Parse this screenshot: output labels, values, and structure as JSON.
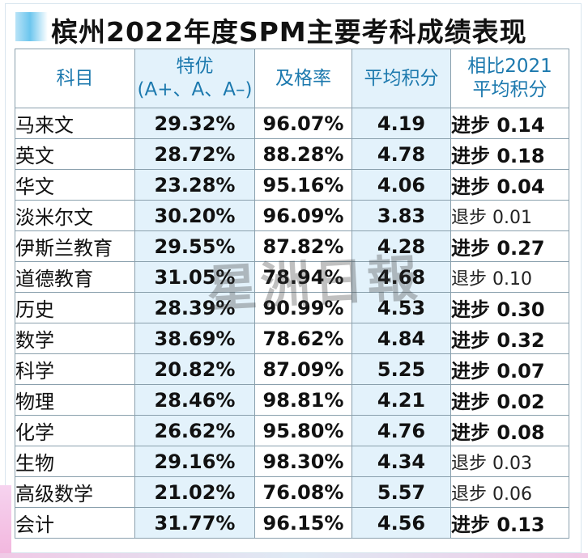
{
  "title": "槟州2022年度SPM主要考科成绩表现",
  "watermark": "星洲日報",
  "colors": {
    "header_text": "#1c79ae",
    "highlight_column": "#e3f2fb",
    "title_accent": "#6cc6ee"
  },
  "headers": {
    "subject": "科目",
    "distinction_line1": "特优",
    "distinction_line2": "(A+、A、A–)",
    "pass_rate": "及格率",
    "average": "平均积分",
    "compare_line1": "相比2021",
    "compare_line2": "平均积分"
  },
  "rows": [
    {
      "subject": "马来文",
      "distinction": "29.32%",
      "pass_rate": "96.07%",
      "average": "4.19",
      "trend": "进步",
      "change": "0.14"
    },
    {
      "subject": "英文",
      "distinction": "28.72%",
      "pass_rate": "88.28%",
      "average": "4.78",
      "trend": "进步",
      "change": "0.18"
    },
    {
      "subject": "华文",
      "distinction": "23.28%",
      "pass_rate": "95.16%",
      "average": "4.06",
      "trend": "进步",
      "change": "0.04"
    },
    {
      "subject": "淡米尔文",
      "distinction": "30.20%",
      "pass_rate": "96.09%",
      "average": "3.83",
      "trend": "退步",
      "change": "0.01"
    },
    {
      "subject": "伊斯兰教育",
      "distinction": "29.55%",
      "pass_rate": "87.82%",
      "average": "4.28",
      "trend": "进步",
      "change": "0.27"
    },
    {
      "subject": "道德教育",
      "distinction": "31.05%",
      "pass_rate": "78.94%",
      "average": "4.68",
      "trend": "退步",
      "change": "0.10"
    },
    {
      "subject": "历史",
      "distinction": "28.39%",
      "pass_rate": "90.99%",
      "average": "4.53",
      "trend": "进步",
      "change": "0.30"
    },
    {
      "subject": "数学",
      "distinction": "38.69%",
      "pass_rate": "78.62%",
      "average": "4.84",
      "trend": "进步",
      "change": "0.32"
    },
    {
      "subject": "科学",
      "distinction": "20.82%",
      "pass_rate": "87.09%",
      "average": "5.25",
      "trend": "进步",
      "change": "0.07"
    },
    {
      "subject": "物理",
      "distinction": "28.46%",
      "pass_rate": "98.81%",
      "average": "4.21",
      "trend": "进步",
      "change": "0.02"
    },
    {
      "subject": "化学",
      "distinction": "26.62%",
      "pass_rate": "95.80%",
      "average": "4.76",
      "trend": "进步",
      "change": "0.08"
    },
    {
      "subject": "生物",
      "distinction": "29.16%",
      "pass_rate": "98.30%",
      "average": "4.34",
      "trend": "退步",
      "change": "0.03"
    },
    {
      "subject": "高级数学",
      "distinction": "21.02%",
      "pass_rate": "76.08%",
      "average": "5.57",
      "trend": "退步",
      "change": "0.06"
    },
    {
      "subject": "会计",
      "distinction": "31.77%",
      "pass_rate": "96.15%",
      "average": "4.56",
      "trend": "进步",
      "change": "0.13"
    }
  ]
}
